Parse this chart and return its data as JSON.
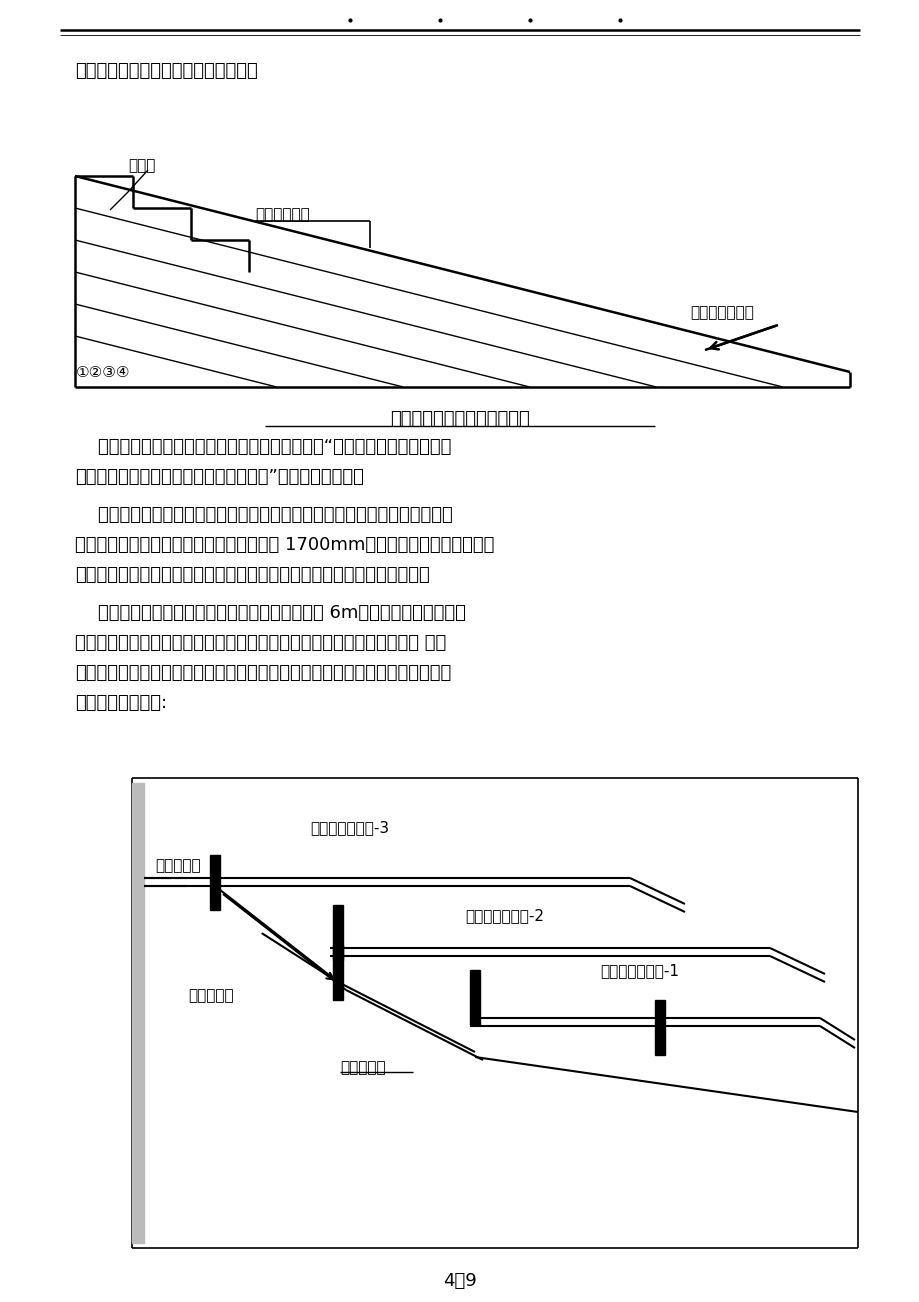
{
  "top_line": "工经验，本工程采用斜面分层浇筑法。",
  "diagram1_caption": "混凝土斜面分层浇注法示意图",
  "para1_lines": [
    "    混凝土浇筑时应该有专人指挥，均匀布料，采用“平面分条，斜面分层，薄",
    "层浇捣，自然流淤，循序渐进，一次到顶”的连续浇捣方式。"
  ],
  "para2_lines": [
    "    大体积砼浇筑振捣的施工工艺和措施是否得当，是关系到混凝土的强度和防",
    "止产生裂缝的重要环节之一。本工程底板厚 1700mm，采取斜面分层浇筑振捣的",
    "措施，泵送的卸料点是根据流水段的大小和混凝土自然流淤与坡度围而定。"
  ],
  "para3_lines": [
    "    每个流水段安排一台泵，卸料点的布置距边模约 6m，每个卸料点围安排三",
    "台振捣器，即卸料点一台，自然流淤的中部一台，自然流淤的坡脚处一台 。每",
    "台振捣器设专人并明确其振捣的岗位职责，以防漏振。浇筑顺序由流水段的一头",
    "向前推进，见下图:"
  ],
  "page_num": "4）9",
  "bg_color": "#ffffff",
  "text_color": "#000000"
}
